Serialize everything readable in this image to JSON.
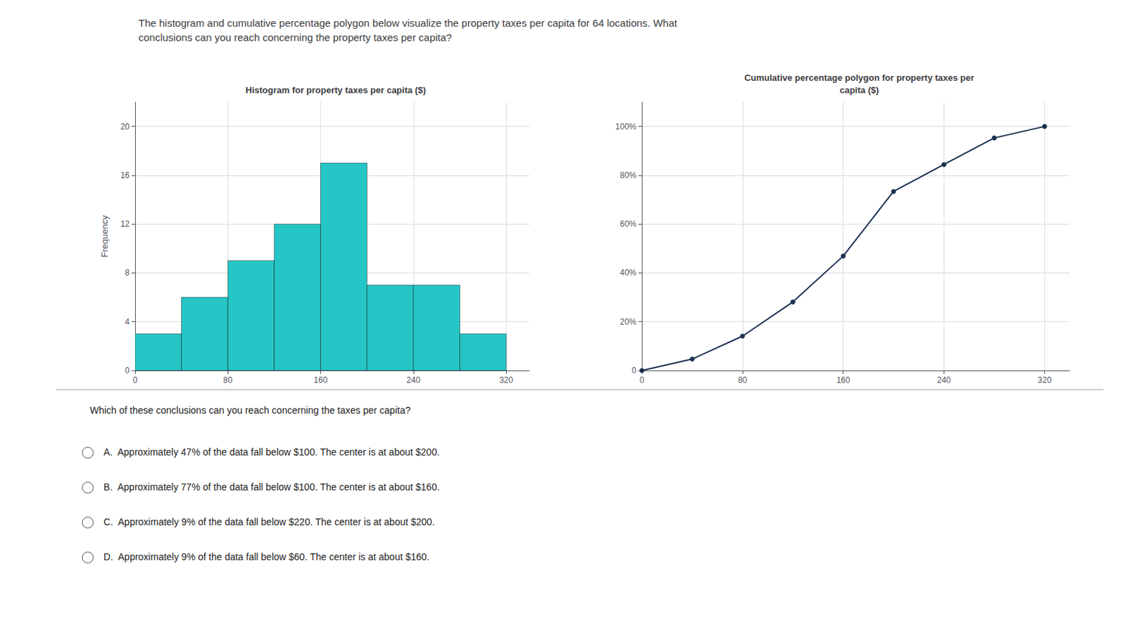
{
  "title": "The histogram and cumulative percentage polygon below visualize the property taxes per capita for 64 locations. What\nconclusions can you reach concerning the property taxes per capita?",
  "annotations": [
    "Which of these conclusions can you reach concerning the taxes per capita?",
    "A.  Approximately 47% of the data fall below $100. The center is at about $200.",
    "B.  Approximately 77% of the data fall below $100. The center is at about $160.",
    "C.  Approximately 9% of the data fall below $220. The center is at about $200.",
    "D.  Approximately 9% of the data fall below $60. The center is at about $160."
  ],
  "chart_data": [
    {
      "type": "histogram",
      "title": "Histogram for property taxes per capita ($)",
      "ylabel": "Frequency",
      "bins": [
        0,
        40,
        80,
        120,
        160,
        200,
        240,
        280,
        320
      ],
      "values": [
        3,
        6,
        9,
        12,
        17,
        7,
        7,
        3
      ],
      "color": "#26C6C6",
      "xlim": [
        0,
        340
      ],
      "xticks": [
        0,
        80,
        160,
        240,
        320
      ],
      "ylim": [
        0,
        22
      ],
      "yticks": [
        0,
        4,
        8,
        12,
        16,
        20
      ],
      "grid": true
    },
    {
      "type": "line",
      "title": "Cumulative percentage polygon for property taxes per\ncapita ($)",
      "x": [
        0,
        40,
        80,
        120,
        160,
        200,
        240,
        280,
        320
      ],
      "values": [
        0,
        4.7,
        14.1,
        28.1,
        46.9,
        73.4,
        84.4,
        95.3,
        100.0
      ],
      "color": "#1a3050",
      "marker": "circle",
      "xlim": [
        0,
        340
      ],
      "xticks": [
        0,
        80,
        160,
        240,
        320
      ],
      "ylim": [
        0,
        110
      ],
      "yticks": [
        0,
        {
          "value": 20,
          "label": "20%"
        },
        {
          "value": 40,
          "label": "40%"
        },
        {
          "value": 60,
          "label": "60%"
        },
        {
          "value": 80,
          "label": "80%"
        },
        {
          "value": 100,
          "label": "100%"
        }
      ],
      "grid": true
    }
  ]
}
